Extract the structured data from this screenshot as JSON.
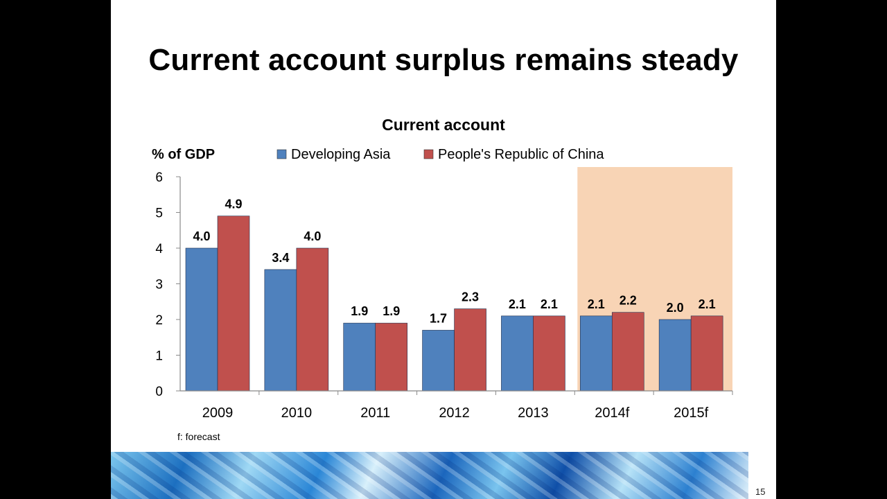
{
  "slide": {
    "title": "Current account surplus remains steady",
    "page_number": "15"
  },
  "chart_data": {
    "type": "bar",
    "title": "Current account",
    "ylabel": "% of GDP",
    "xlabel": "",
    "ylim": [
      0,
      6
    ],
    "yticks": [
      0,
      1,
      2,
      3,
      4,
      5,
      6
    ],
    "categories": [
      "2009",
      "2010",
      "2011",
      "2012",
      "2013",
      "2014f",
      "2015f"
    ],
    "series": [
      {
        "name": "Developing Asia",
        "color": "#4f81bd",
        "values": [
          4.0,
          3.4,
          1.9,
          1.7,
          2.1,
          2.1,
          2.0
        ]
      },
      {
        "name": "People's Republic of China",
        "color": "#c0504d",
        "values": [
          4.9,
          4.0,
          1.9,
          2.3,
          2.1,
          2.2,
          2.1
        ]
      }
    ],
    "highlight": {
      "categories": [
        "2014f",
        "2015f"
      ],
      "color": "#f8d4b5"
    },
    "legend_position": "top",
    "grid": false,
    "footnote": "f: forecast"
  }
}
